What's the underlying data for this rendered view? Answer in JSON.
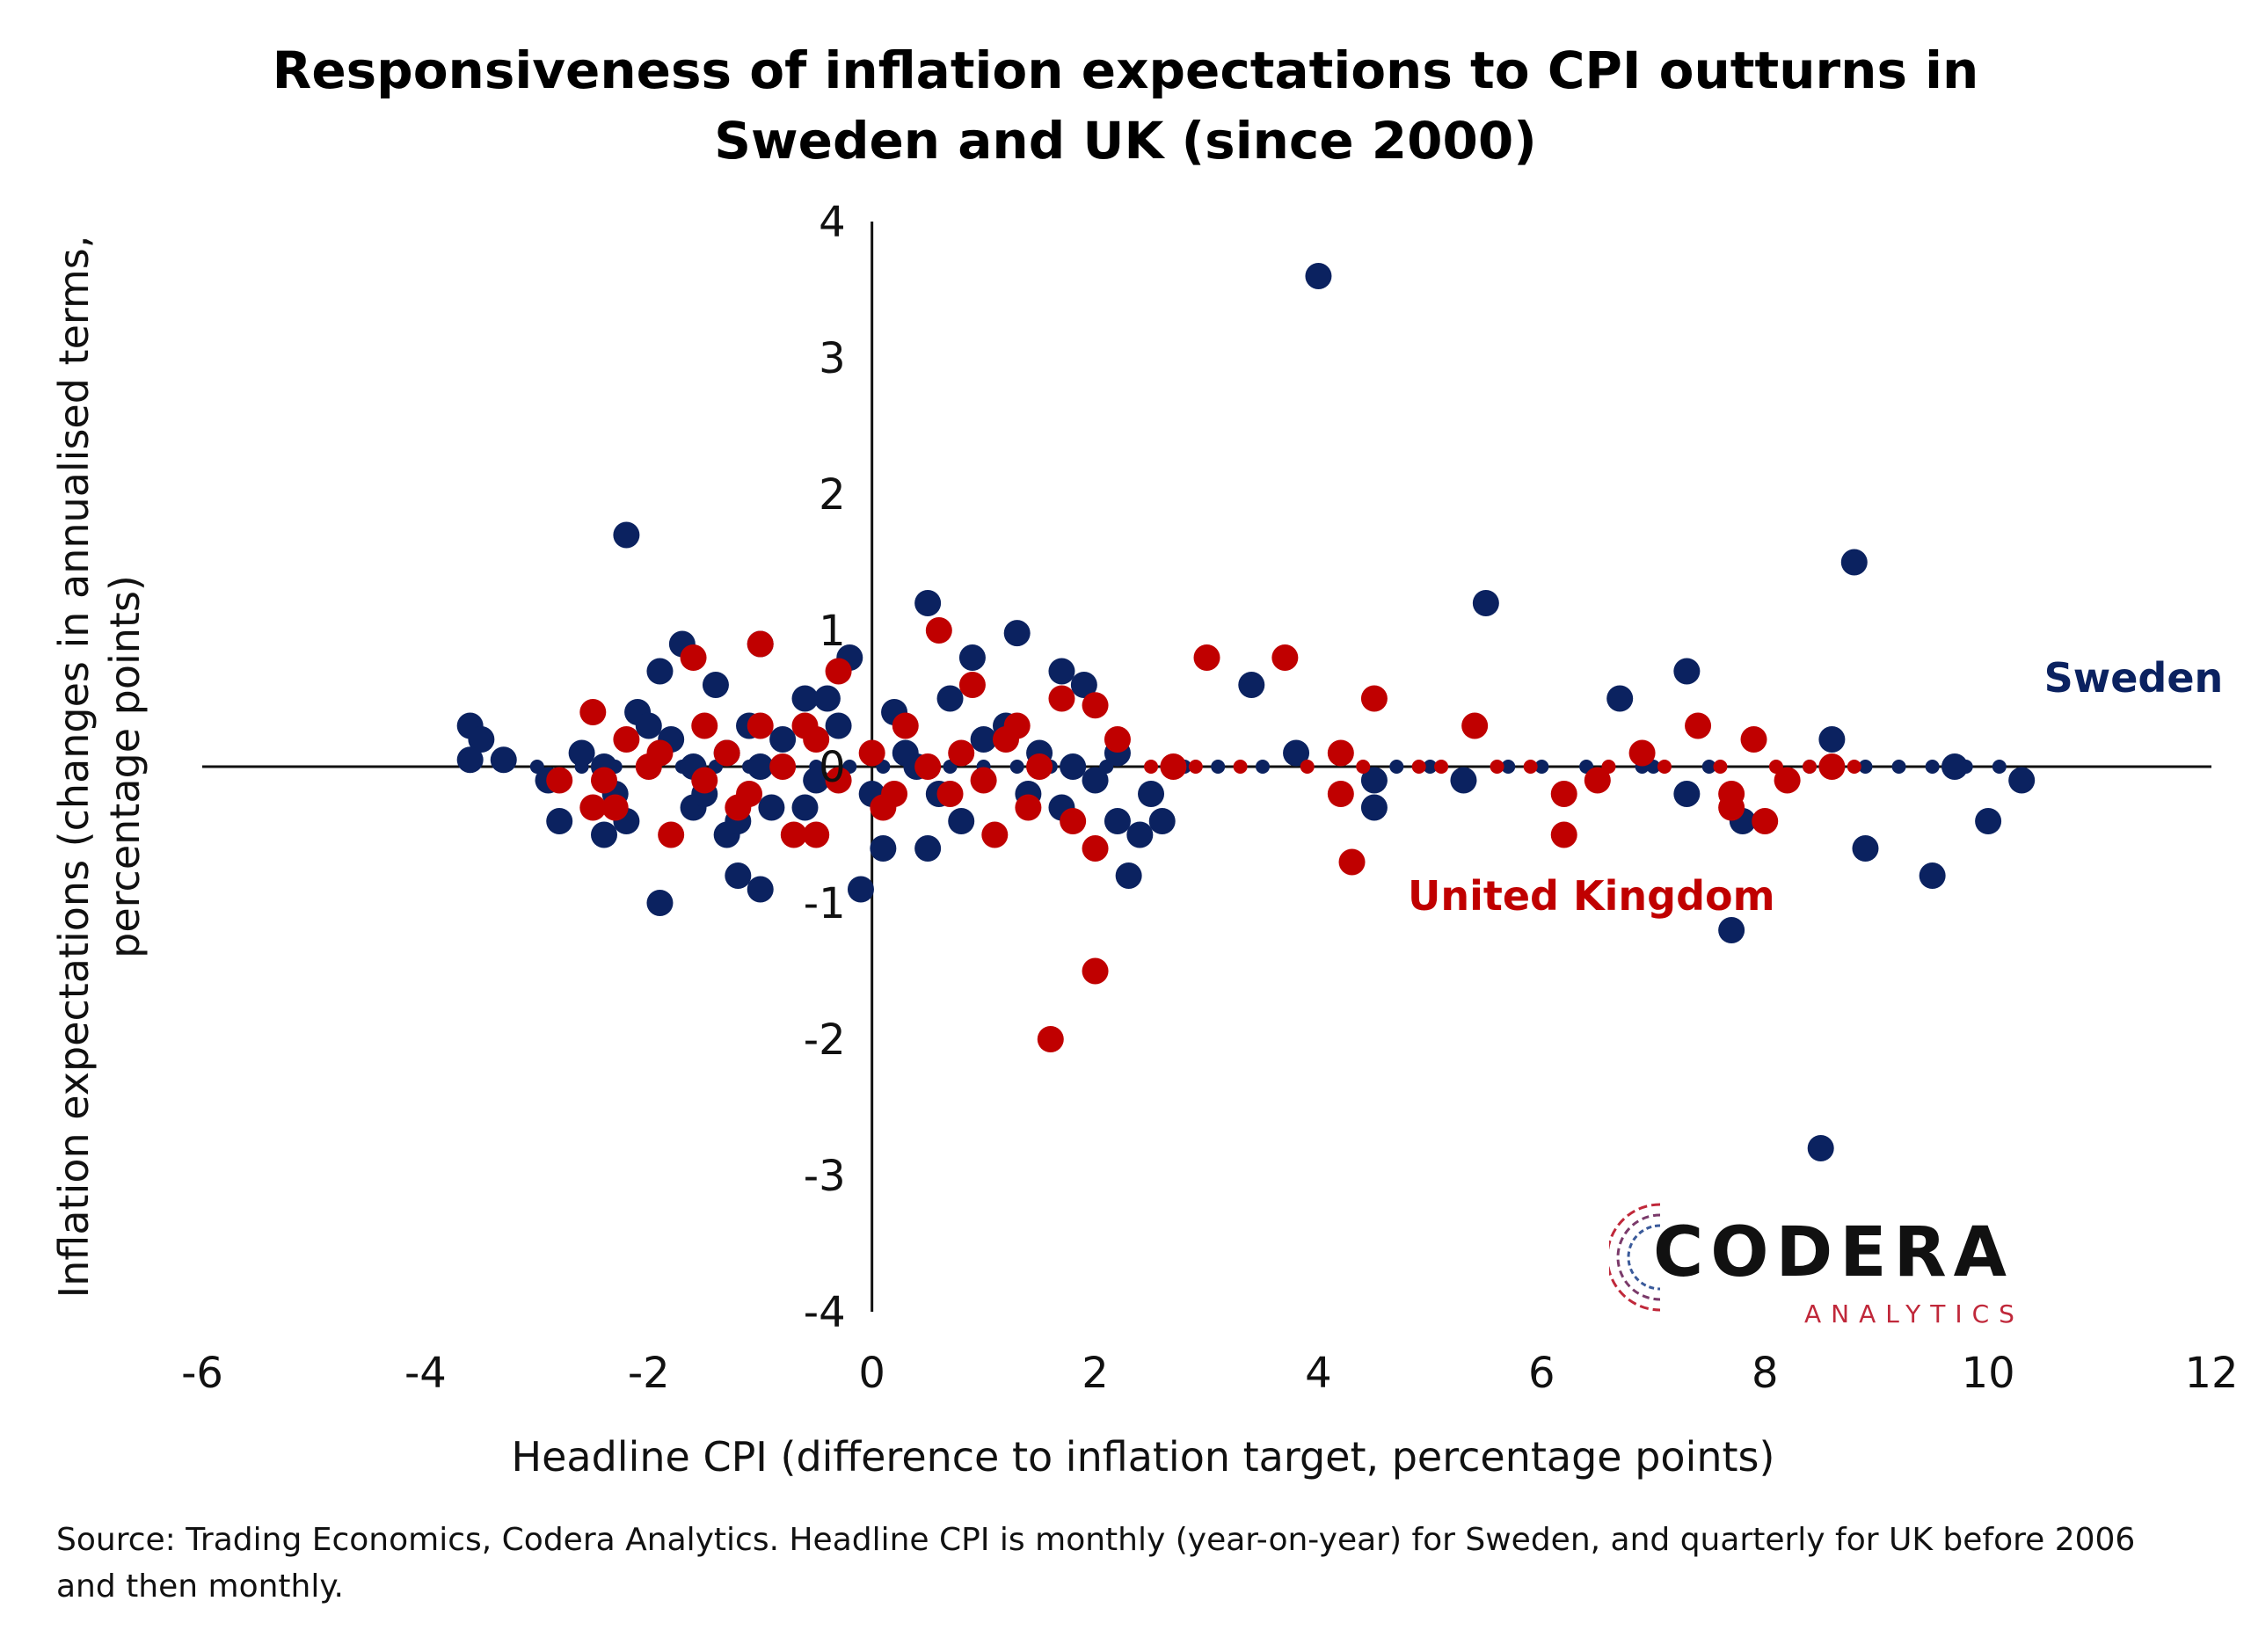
{
  "chart_data": {
    "type": "scatter",
    "title": [
      "Responsiveness of inflation expectations to CPI outturns in",
      "Sweden and UK (since 2000)"
    ],
    "xlabel": "Headline CPI (difference to inflation target, percentage points)",
    "ylabel": [
      "Inflation expectations (changes in annualised terms,",
      "percentage points)"
    ],
    "xlim": [
      -6,
      12
    ],
    "ylim": [
      -4,
      4
    ],
    "xticks": [
      "-6",
      "-4",
      "-2",
      "0",
      "2",
      "4",
      "6",
      "8",
      "10",
      "12"
    ],
    "yticks": [
      "4",
      "3",
      "2",
      "1",
      "0",
      "-1",
      "-2",
      "-3",
      "-4"
    ],
    "grid": false,
    "series": [
      {
        "name": "Sweden",
        "color": "#0b2260",
        "points": [
          [
            4.0,
            3.6
          ],
          [
            -2.2,
            1.7
          ],
          [
            8.8,
            1.5
          ],
          [
            5.5,
            1.2
          ],
          [
            0.5,
            1.2
          ],
          [
            1.3,
            0.98
          ],
          [
            -1.0,
            0.9
          ],
          [
            -1.7,
            0.9
          ],
          [
            0.9,
            0.8
          ],
          [
            1.7,
            0.7
          ],
          [
            7.3,
            0.7
          ],
          [
            3.4,
            0.6
          ],
          [
            6.7,
            0.5
          ],
          [
            -3.6,
            0.3
          ],
          [
            -3.5,
            0.2
          ],
          [
            8.6,
            0.2
          ],
          [
            3.8,
            0.1
          ],
          [
            -3.6,
            0.05
          ],
          [
            -3.3,
            0.05
          ],
          [
            9.7,
            0.0
          ],
          [
            -2.9,
            -0.1
          ],
          [
            -2.8,
            -0.4
          ],
          [
            -1.9,
            -1.0
          ],
          [
            -1.2,
            -0.8
          ],
          [
            -1.0,
            -0.9
          ],
          [
            -0.1,
            -0.9
          ],
          [
            2.3,
            -0.8
          ],
          [
            9.5,
            -0.8
          ],
          [
            8.9,
            -0.6
          ],
          [
            7.7,
            -1.2
          ],
          [
            8.5,
            -2.8
          ],
          [
            10.0,
            -0.4
          ],
          [
            10.3,
            -0.1
          ],
          [
            7.3,
            -0.2
          ],
          [
            7.8,
            -0.4
          ],
          [
            5.3,
            -0.1
          ],
          [
            4.5,
            -0.3
          ],
          [
            4.5,
            -0.1
          ],
          [
            2.4,
            -0.5
          ],
          [
            2.6,
            -0.4
          ],
          [
            0.5,
            -0.6
          ],
          [
            0.1,
            -0.6
          ],
          [
            -2.4,
            -0.5
          ],
          [
            -2.2,
            -0.4
          ],
          [
            -1.3,
            -0.5
          ],
          [
            -1.6,
            -0.3
          ],
          [
            -1.2,
            -0.4
          ],
          [
            -0.6,
            -0.3
          ],
          [
            1.7,
            -0.3
          ],
          [
            2.2,
            -0.4
          ],
          [
            0.8,
            -0.4
          ],
          [
            -2.6,
            0.1
          ],
          [
            -2.1,
            0.4
          ],
          [
            -1.9,
            0.7
          ],
          [
            -1.4,
            0.6
          ],
          [
            -0.6,
            0.5
          ],
          [
            -0.2,
            0.8
          ],
          [
            0.7,
            0.5
          ],
          [
            1.9,
            0.6
          ],
          [
            2.2,
            0.1
          ],
          [
            1.4,
            -0.2
          ],
          [
            1.0,
            0.2
          ],
          [
            -0.3,
            0.3
          ],
          [
            -1.8,
            0.2
          ],
          [
            -2.4,
            0.0
          ],
          [
            -1.0,
            0.0
          ],
          [
            0.3,
            0.1
          ],
          [
            -0.5,
            -0.1
          ],
          [
            -1.5,
            -0.2
          ],
          [
            -2.0,
            0.3
          ],
          [
            -0.8,
            0.2
          ],
          [
            0.0,
            -0.2
          ],
          [
            1.8,
            0.0
          ],
          [
            2.0,
            -0.1
          ],
          [
            2.5,
            -0.2
          ],
          [
            1.2,
            0.3
          ],
          [
            -1.1,
            0.3
          ],
          [
            0.6,
            -0.2
          ],
          [
            -0.9,
            -0.3
          ],
          [
            -1.6,
            0.0
          ],
          [
            0.2,
            0.4
          ],
          [
            -0.4,
            0.5
          ],
          [
            -2.3,
            -0.2
          ],
          [
            -1.3,
            0.1
          ],
          [
            0.4,
            0.0
          ],
          [
            1.5,
            0.1
          ]
        ]
      },
      {
        "name": "United Kingdom",
        "color": "#c00000",
        "points": [
          [
            1.6,
            -2.0
          ],
          [
            2.0,
            -1.5
          ],
          [
            4.3,
            -0.7
          ],
          [
            6.2,
            -0.5
          ],
          [
            8.0,
            -0.4
          ],
          [
            2.0,
            -0.6
          ],
          [
            1.8,
            -0.4
          ],
          [
            1.1,
            -0.5
          ],
          [
            -0.7,
            -0.5
          ],
          [
            -0.5,
            -0.5
          ],
          [
            -1.8,
            -0.5
          ],
          [
            -2.3,
            -0.3
          ],
          [
            -2.5,
            -0.3
          ],
          [
            0.6,
            1.0
          ],
          [
            -1.0,
            0.9
          ],
          [
            -1.6,
            0.8
          ],
          [
            3.0,
            0.8
          ],
          [
            3.7,
            0.8
          ],
          [
            -0.3,
            0.7
          ],
          [
            0.9,
            0.6
          ],
          [
            4.5,
            0.5
          ],
          [
            1.7,
            0.5
          ],
          [
            2.0,
            0.45
          ],
          [
            -2.5,
            0.4
          ],
          [
            -1.5,
            0.3
          ],
          [
            7.4,
            0.3
          ],
          [
            5.4,
            0.3
          ],
          [
            7.9,
            0.2
          ],
          [
            2.2,
            0.2
          ],
          [
            4.2,
            0.1
          ],
          [
            6.9,
            0.1
          ],
          [
            -0.6,
            0.3
          ],
          [
            0.3,
            0.3
          ],
          [
            1.3,
            0.3
          ],
          [
            -1.0,
            0.3
          ],
          [
            -2.2,
            0.2
          ],
          [
            -1.3,
            0.1
          ],
          [
            0.0,
            0.1
          ],
          [
            0.8,
            0.1
          ],
          [
            -2.0,
            0.0
          ],
          [
            -0.8,
            0.0
          ],
          [
            0.5,
            0.0
          ],
          [
            1.5,
            0.0
          ],
          [
            -1.5,
            -0.1
          ],
          [
            -0.3,
            -0.1
          ],
          [
            1.0,
            -0.1
          ],
          [
            -2.4,
            -0.1
          ],
          [
            -1.1,
            -0.2
          ],
          [
            0.2,
            -0.2
          ],
          [
            0.7,
            -0.2
          ],
          [
            7.7,
            -0.2
          ],
          [
            7.7,
            -0.3
          ],
          [
            6.2,
            -0.2
          ],
          [
            4.2,
            -0.2
          ],
          [
            8.6,
            0.0
          ],
          [
            6.5,
            -0.1
          ],
          [
            8.2,
            -0.1
          ],
          [
            -2.8,
            -0.1
          ],
          [
            -0.5,
            0.2
          ],
          [
            1.2,
            0.2
          ],
          [
            -1.9,
            0.1
          ],
          [
            0.1,
            -0.3
          ],
          [
            -1.2,
            -0.3
          ],
          [
            1.4,
            -0.3
          ],
          [
            2.7,
            0.0
          ]
        ]
      }
    ],
    "flat_points_near_zero": {
      "sweden": [
        -3.0,
        -2.6,
        -2.3,
        -2.0,
        -1.7,
        -1.4,
        -1.1,
        -0.8,
        -0.5,
        -0.2,
        0.1,
        0.4,
        0.7,
        1.0,
        1.3,
        1.6,
        2.1,
        2.8,
        3.1,
        3.5,
        4.7,
        5.0,
        5.7,
        6.0,
        6.4,
        6.9,
        7.0,
        7.5,
        8.4,
        8.9,
        9.2,
        9.5,
        9.8,
        10.1
      ],
      "uk": [
        2.5,
        2.9,
        3.3,
        3.9,
        4.4,
        4.9,
        5.1,
        5.6,
        5.9,
        6.6,
        7.1,
        7.6,
        8.1,
        8.4,
        8.8
      ]
    },
    "annotations": [
      {
        "text": "Sweden",
        "color": "#0b2260",
        "x": 10.5,
        "y": 0.55
      },
      {
        "text": "United Kingdom",
        "color": "#c00000",
        "x": 4.8,
        "y": -1.05
      }
    ]
  },
  "source_note": "Source: Trading Economics, Codera Analytics. Headline CPI is monthly (year-on-year) for Sweden, and quarterly for UK before 2006 and then monthly.",
  "logo": {
    "word": "CODERA",
    "sub": "ANALYTICS"
  }
}
